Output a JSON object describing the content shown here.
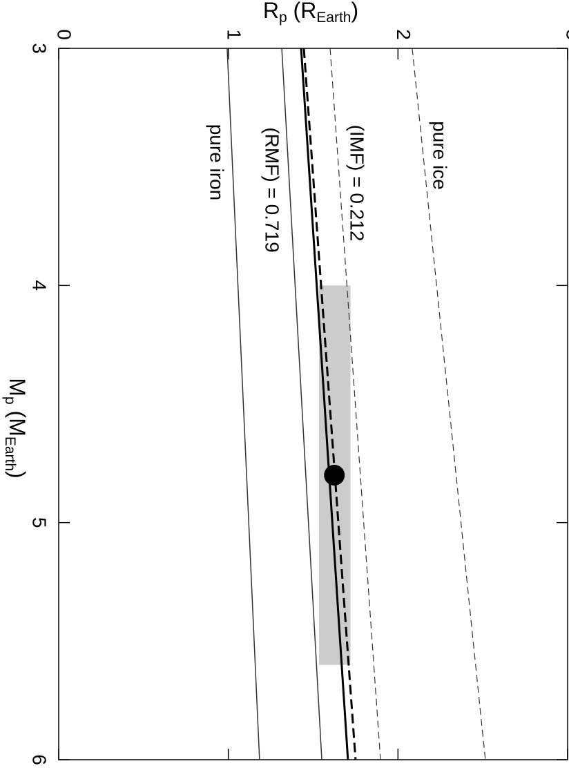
{
  "chart_data": {
    "type": "line",
    "ylabel": [
      "R",
      "p",
      " (R",
      "Earth",
      ")"
    ],
    "xlabel": [
      "M",
      "p",
      " (M",
      "Earth",
      ")"
    ],
    "xlim": [
      3,
      6
    ],
    "xticks": [
      3,
      4,
      5,
      6
    ],
    "ylim": [
      0,
      3
    ],
    "yticks": [
      0,
      1,
      2,
      3
    ],
    "x": [
      3,
      6
    ],
    "series": [
      {
        "color": "#333333",
        "values": [
          0.993,
          1.184
        ],
        "dash": false,
        "width": 1.5
      },
      {
        "color": "#333333",
        "values": [
          1.315,
          1.551
        ],
        "dash": false,
        "width": 1.5
      },
      {
        "color": "#000000",
        "values": [
          1.429,
          1.705
        ],
        "dash": false,
        "width": 3
      },
      {
        "color": "#000000",
        "values": [
          1.445,
          1.75
        ],
        "dash": true,
        "width": 3
      },
      {
        "color": "#333333",
        "values": [
          1.6,
          1.897
        ],
        "dash": true,
        "width": 1.2
      },
      {
        "color": "#333333",
        "values": [
          2.084,
          2.515
        ],
        "dash": true,
        "width": 1.2
      }
    ],
    "region": {
      "color": "#cccccc",
      "xlim": [
        4.0,
        5.6
      ],
      "ylim": [
        1.535,
        1.72
      ]
    },
    "point": {
      "x": 4.8,
      "y": 1.625,
      "color": "#000000"
    },
    "annotations": [
      "pure iron",
      "(RMF) = 0.719",
      "(IMF) = 0.212",
      "pure ice"
    ]
  }
}
